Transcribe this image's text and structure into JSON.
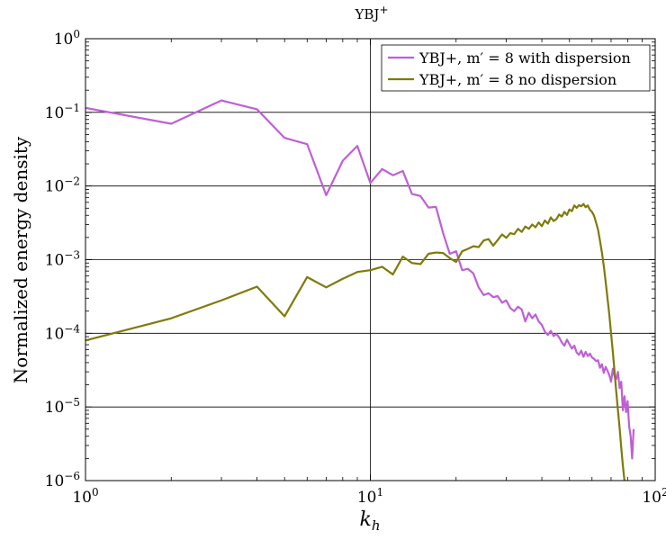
{
  "chart_data": {
    "type": "line",
    "title": "YBJ",
    "title_sup": "+",
    "xlabel": "k",
    "xlabel_sub": "h",
    "ylabel": "Normalized energy density",
    "xscale": "log",
    "yscale": "log",
    "xlim": [
      1,
      100
    ],
    "ylim": [
      1e-06,
      1
    ],
    "grid": "major",
    "legend_position": "top-right",
    "x_ticks": [
      {
        "value": 1,
        "base": "10",
        "exp": "0"
      },
      {
        "value": 10,
        "base": "10",
        "exp": "1"
      },
      {
        "value": 100,
        "base": "10",
        "exp": "2"
      }
    ],
    "y_ticks": [
      {
        "value": 1e-06,
        "base": "10",
        "exp": "−6"
      },
      {
        "value": 1e-05,
        "base": "10",
        "exp": "−5"
      },
      {
        "value": 0.0001,
        "base": "10",
        "exp": "−4"
      },
      {
        "value": 0.001,
        "base": "10",
        "exp": "−3"
      },
      {
        "value": 0.01,
        "base": "10",
        "exp": "−2"
      },
      {
        "value": 0.1,
        "base": "10",
        "exp": "−1"
      },
      {
        "value": 1,
        "base": "10",
        "exp": "0"
      }
    ],
    "series": [
      {
        "name": "YBJ+, m′ = 8 with dispersion",
        "color": "#bf5fd6",
        "x": [
          1,
          2,
          3,
          4,
          5,
          6,
          7,
          8,
          9,
          10,
          11,
          12,
          13,
          14,
          15,
          16,
          17,
          18,
          19,
          20,
          21,
          22,
          23,
          24,
          25,
          26,
          27,
          28,
          29,
          30,
          31,
          32,
          33,
          34,
          35,
          36,
          37,
          38,
          39,
          40,
          41,
          42,
          43,
          44,
          45,
          46,
          47,
          48,
          49,
          50,
          51,
          52,
          53,
          54,
          55,
          56,
          57,
          58,
          59,
          60,
          61,
          62,
          63,
          64,
          65,
          66,
          67,
          68,
          69,
          70,
          71,
          72,
          73,
          74,
          75,
          76,
          77,
          78,
          79,
          80,
          81,
          82,
          83,
          84
        ],
        "y": [
          0.115,
          0.07,
          0.145,
          0.11,
          0.045,
          0.037,
          0.0075,
          0.022,
          0.035,
          0.011,
          0.017,
          0.014,
          0.016,
          0.0078,
          0.0073,
          0.0051,
          0.0052,
          0.0023,
          0.0012,
          0.0013,
          0.00072,
          0.00075,
          0.00065,
          0.00042,
          0.00033,
          0.00035,
          0.00031,
          0.00032,
          0.00026,
          0.00028,
          0.00022,
          0.0002,
          0.00023,
          0.00021,
          0.000145,
          0.00019,
          0.00016,
          0.00018,
          0.000145,
          0.00013,
          0.000105,
          9.5e-05,
          0.000108,
          9.2e-05,
          9.8e-05,
          8.8e-05,
          7.5e-05,
          6.8e-05,
          8.2e-05,
          7.1e-05,
          6.2e-05,
          6.8e-05,
          5.5e-05,
          5.1e-05,
          5.8e-05,
          4.8e-05,
          5.6e-05,
          4.9e-05,
          5.3e-05,
          4.7e-05,
          4.5e-05,
          4.2e-05,
          4.3e-05,
          3.4e-05,
          3.8e-05,
          2.9e-05,
          3.5e-05,
          3.1e-05,
          2.7e-05,
          2.2e-05,
          3.3e-05,
          2.6e-05,
          2.4e-05,
          3e-05,
          1.8e-05,
          2.2e-05,
          9e-06,
          1.4e-05,
          8.5e-06,
          1.2e-05,
          5.5e-06,
          4e-06,
          2e-06,
          5e-06
        ]
      },
      {
        "name": "YBJ+, m′ = 8 no dispersion",
        "color": "#7f7a0a",
        "x": [
          1,
          2,
          3,
          4,
          5,
          6,
          7,
          8,
          9,
          10,
          11,
          12,
          13,
          14,
          15,
          16,
          17,
          18,
          19,
          20,
          21,
          22,
          23,
          24,
          25,
          26,
          27,
          28,
          29,
          30,
          31,
          32,
          33,
          34,
          35,
          36,
          37,
          38,
          39,
          40,
          41,
          42,
          43,
          44,
          45,
          46,
          47,
          48,
          49,
          50,
          51,
          52,
          53,
          54,
          55,
          56,
          57,
          58,
          59,
          60,
          61,
          62,
          63,
          64,
          65,
          66,
          67,
          68,
          69,
          70,
          71,
          72,
          73,
          74,
          75,
          76,
          77,
          78
        ],
        "y": [
          8e-05,
          0.00016,
          0.00028,
          0.00043,
          0.00017,
          0.00058,
          0.00042,
          0.00055,
          0.00068,
          0.00072,
          0.0008,
          0.00063,
          0.0011,
          0.0009,
          0.00087,
          0.0012,
          0.00125,
          0.00123,
          0.00105,
          0.00093,
          0.0013,
          0.0014,
          0.00152,
          0.00148,
          0.00182,
          0.0019,
          0.00155,
          0.00185,
          0.0022,
          0.00198,
          0.00229,
          0.00222,
          0.00262,
          0.00238,
          0.00282,
          0.00262,
          0.003,
          0.00275,
          0.0032,
          0.00285,
          0.0034,
          0.00308,
          0.00375,
          0.00335,
          0.00355,
          0.0041,
          0.00385,
          0.00445,
          0.00405,
          0.0048,
          0.00455,
          0.00545,
          0.00505,
          0.0055,
          0.0053,
          0.0057,
          0.00515,
          0.00545,
          0.00475,
          0.00445,
          0.00395,
          0.0032,
          0.00255,
          0.0018,
          0.00125,
          0.00082,
          0.0005,
          0.0003,
          0.00018,
          0.0001,
          5.6e-05,
          3e-05,
          1.6e-05,
          9e-06,
          5.2e-06,
          2.8e-06,
          1.6e-06,
          1e-06
        ]
      }
    ]
  }
}
